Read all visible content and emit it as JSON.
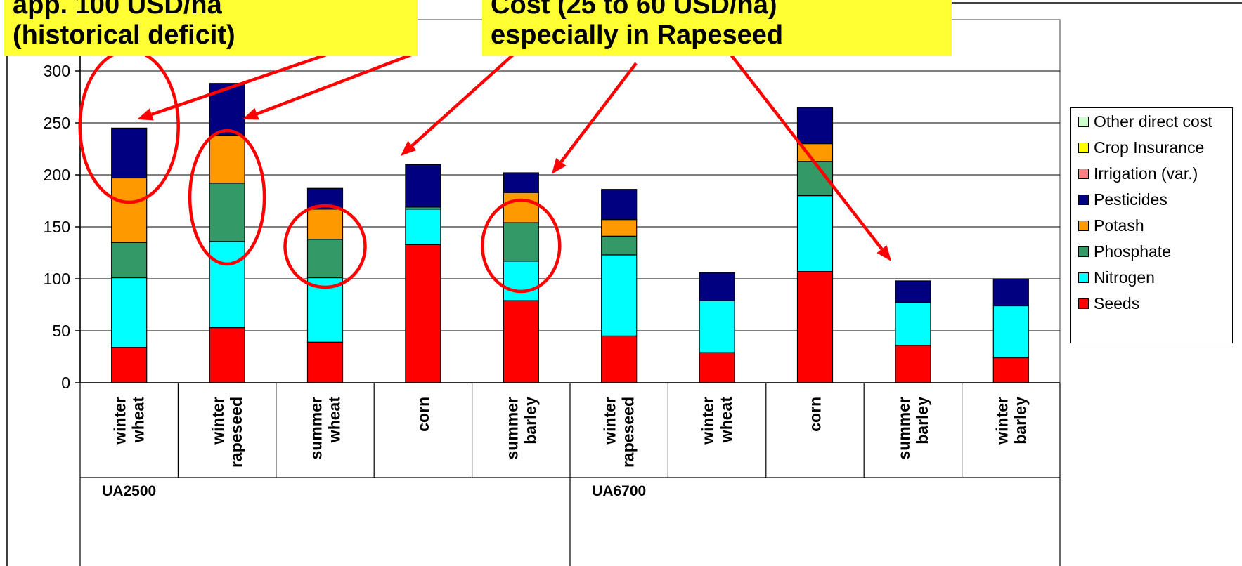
{
  "annotations": {
    "left_callout": [
      "app. 100 USD/ha",
      "(historical deficit)"
    ],
    "right_callout": [
      "Cost (25 to 60 USD/ha)",
      "especially in Rapeseed"
    ],
    "arrow_color": "#ff0000",
    "circle_color": "#ff0000"
  },
  "chart_data": {
    "type": "bar",
    "stacked": true,
    "ylim": [
      0,
      300
    ],
    "yticks": [
      "0",
      "50",
      "100",
      "150",
      "200",
      "250",
      "300"
    ],
    "grid": true,
    "legend_position": "right",
    "categories": [
      "winter wheat",
      "winter rapeseed",
      "summer wheat",
      "corn",
      "summer barley",
      "winter rapeseed",
      "winter wheat",
      "corn",
      "summer barley",
      "winter barley"
    ],
    "category_labels": [
      [
        "winter",
        "wheat"
      ],
      [
        "winter",
        "rapeseed"
      ],
      [
        "summer",
        "wheat"
      ],
      [
        "corn"
      ],
      [
        "summer",
        "barley"
      ],
      [
        "winter",
        "rapeseed"
      ],
      [
        "winter",
        "wheat"
      ],
      [
        "corn"
      ],
      [
        "summer",
        "barley"
      ],
      [
        "winter",
        "barley"
      ]
    ],
    "groups": [
      {
        "label": "UA2500",
        "categories": [
          0,
          1,
          2,
          3,
          4
        ]
      },
      {
        "label": "UA6700",
        "categories": [
          5,
          6,
          7,
          8,
          9
        ]
      }
    ],
    "series": [
      {
        "name": "Seeds",
        "color": "#ff0000",
        "values": [
          34,
          53,
          39,
          133,
          79,
          45,
          29,
          107,
          36,
          24
        ]
      },
      {
        "name": "Nitrogen",
        "color": "#00ffff",
        "values": [
          67,
          83,
          62,
          34,
          38,
          78,
          50,
          73,
          41,
          50
        ]
      },
      {
        "name": "Phosphate",
        "color": "#339966",
        "values": [
          34,
          56,
          37,
          2,
          37,
          18,
          0,
          33,
          0,
          0
        ]
      },
      {
        "name": "Potash",
        "color": "#ff9900",
        "values": [
          62,
          46,
          29,
          0,
          29,
          16,
          0,
          17,
          0,
          0
        ]
      },
      {
        "name": "Irrigation (var.)",
        "color": "#ff8080",
        "values": [
          0,
          0,
          0,
          0,
          0,
          0,
          0,
          0,
          0,
          0
        ]
      },
      {
        "name": "Crop Insurance",
        "color": "#ffff00",
        "values": [
          0,
          0,
          0,
          0,
          0,
          0,
          0,
          0,
          0,
          0
        ]
      },
      {
        "name": "Other direct cost",
        "color": "#ccffcc",
        "values": [
          0,
          0,
          0,
          0,
          0,
          0,
          0,
          0,
          0,
          0
        ]
      },
      {
        "name": "Pesticides",
        "color": "#000080",
        "values": [
          48,
          50,
          20,
          41,
          19,
          29,
          27,
          35,
          21,
          26
        ]
      }
    ],
    "legend_order": [
      "Other direct cost",
      "Crop Insurance",
      "Irrigation (var.)",
      "Pesticides",
      "Potash",
      "Phosphate",
      "Nitrogen",
      "Seeds"
    ]
  }
}
